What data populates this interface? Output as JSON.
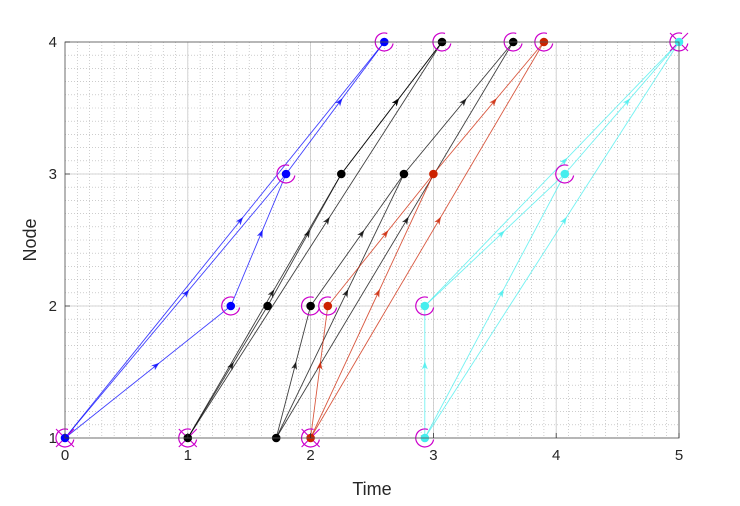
{
  "chart_data": {
    "type": "line",
    "xlabel": "Time",
    "ylabel": "Node",
    "xlim": [
      0,
      5
    ],
    "ylim": [
      1,
      4
    ],
    "xticks": [
      "0",
      "1",
      "2",
      "3",
      "4",
      "5"
    ],
    "yticks": [
      "1",
      "2",
      "3",
      "4"
    ],
    "grid": true,
    "minor_grid": true,
    "legend": "none",
    "colors": {
      "blue": "#0000ff",
      "black": "#000000",
      "red": "#cc2200",
      "cyan": "#44eeee",
      "marker_ring": "#cc00cc"
    },
    "series": [
      {
        "color_key": "blue",
        "paths": [
          [
            [
              0,
              1
            ],
            [
              1.8,
              3
            ],
            [
              2.6,
              4
            ]
          ],
          [
            [
              0,
              1
            ],
            [
              1.35,
              2
            ],
            [
              1.8,
              3
            ]
          ],
          [
            [
              0,
              1
            ],
            [
              2.6,
              4
            ]
          ]
        ],
        "points": [
          [
            0,
            1
          ],
          [
            1.35,
            2
          ],
          [
            1.8,
            3
          ],
          [
            2.6,
            4
          ]
        ]
      },
      {
        "color_key": "black",
        "paths": [
          [
            [
              1,
              1
            ],
            [
              1.65,
              2
            ],
            [
              2.25,
              3
            ],
            [
              3.07,
              4
            ]
          ],
          [
            [
              1,
              1
            ],
            [
              2.25,
              3
            ],
            [
              3.07,
              4
            ]
          ],
          [
            [
              1,
              1
            ],
            [
              3.07,
              4
            ]
          ],
          [
            [
              1.72,
              1
            ],
            [
              2.0,
              2
            ],
            [
              2.76,
              3
            ],
            [
              3.65,
              4
            ]
          ],
          [
            [
              1.72,
              1
            ],
            [
              2.76,
              3
            ]
          ],
          [
            [
              1.72,
              1
            ],
            [
              3.65,
              4
            ]
          ]
        ],
        "points": [
          [
            1,
            1
          ],
          [
            1.65,
            2
          ],
          [
            2.25,
            3
          ],
          [
            3.07,
            4
          ],
          [
            1.72,
            1
          ],
          [
            2.0,
            2
          ],
          [
            2.76,
            3
          ],
          [
            3.65,
            4
          ]
        ]
      },
      {
        "color_key": "red",
        "paths": [
          [
            [
              2.0,
              1
            ],
            [
              2.14,
              2
            ],
            [
              3.0,
              3
            ],
            [
              3.9,
              4
            ]
          ],
          [
            [
              2.0,
              1
            ],
            [
              3.0,
              3
            ]
          ],
          [
            [
              2.0,
              1
            ],
            [
              3.9,
              4
            ]
          ]
        ],
        "points": [
          [
            2.0,
            1
          ],
          [
            2.14,
            2
          ],
          [
            3.0,
            3
          ],
          [
            3.9,
            4
          ]
        ]
      },
      {
        "color_key": "cyan",
        "paths": [
          [
            [
              2.93,
              1
            ],
            [
              2.93,
              2
            ],
            [
              4.07,
              3
            ],
            [
              5.0,
              4
            ]
          ],
          [
            [
              2.93,
              1
            ],
            [
              4.07,
              3
            ]
          ],
          [
            [
              2.93,
              1
            ],
            [
              5.0,
              4
            ]
          ],
          [
            [
              2.93,
              2
            ],
            [
              5.0,
              4
            ]
          ]
        ],
        "points": [
          [
            2.93,
            1
          ],
          [
            2.93,
            2
          ],
          [
            4.07,
            3
          ],
          [
            5.0,
            4
          ]
        ]
      }
    ],
    "ring_markers": [
      [
        0,
        1
      ],
      [
        1,
        1
      ],
      [
        2.0,
        1
      ],
      [
        2.93,
        1
      ],
      [
        1.35,
        2
      ],
      [
        2.0,
        2
      ],
      [
        2.14,
        2
      ],
      [
        2.93,
        2
      ],
      [
        1.8,
        3
      ],
      [
        4.07,
        3
      ],
      [
        2.6,
        4
      ],
      [
        3.07,
        4
      ],
      [
        3.65,
        4
      ],
      [
        3.9,
        4
      ],
      [
        5.0,
        4
      ]
    ],
    "cross_markers": [
      [
        0,
        1
      ],
      [
        1,
        1
      ],
      [
        2.0,
        1
      ],
      [
        5.0,
        4
      ]
    ]
  }
}
